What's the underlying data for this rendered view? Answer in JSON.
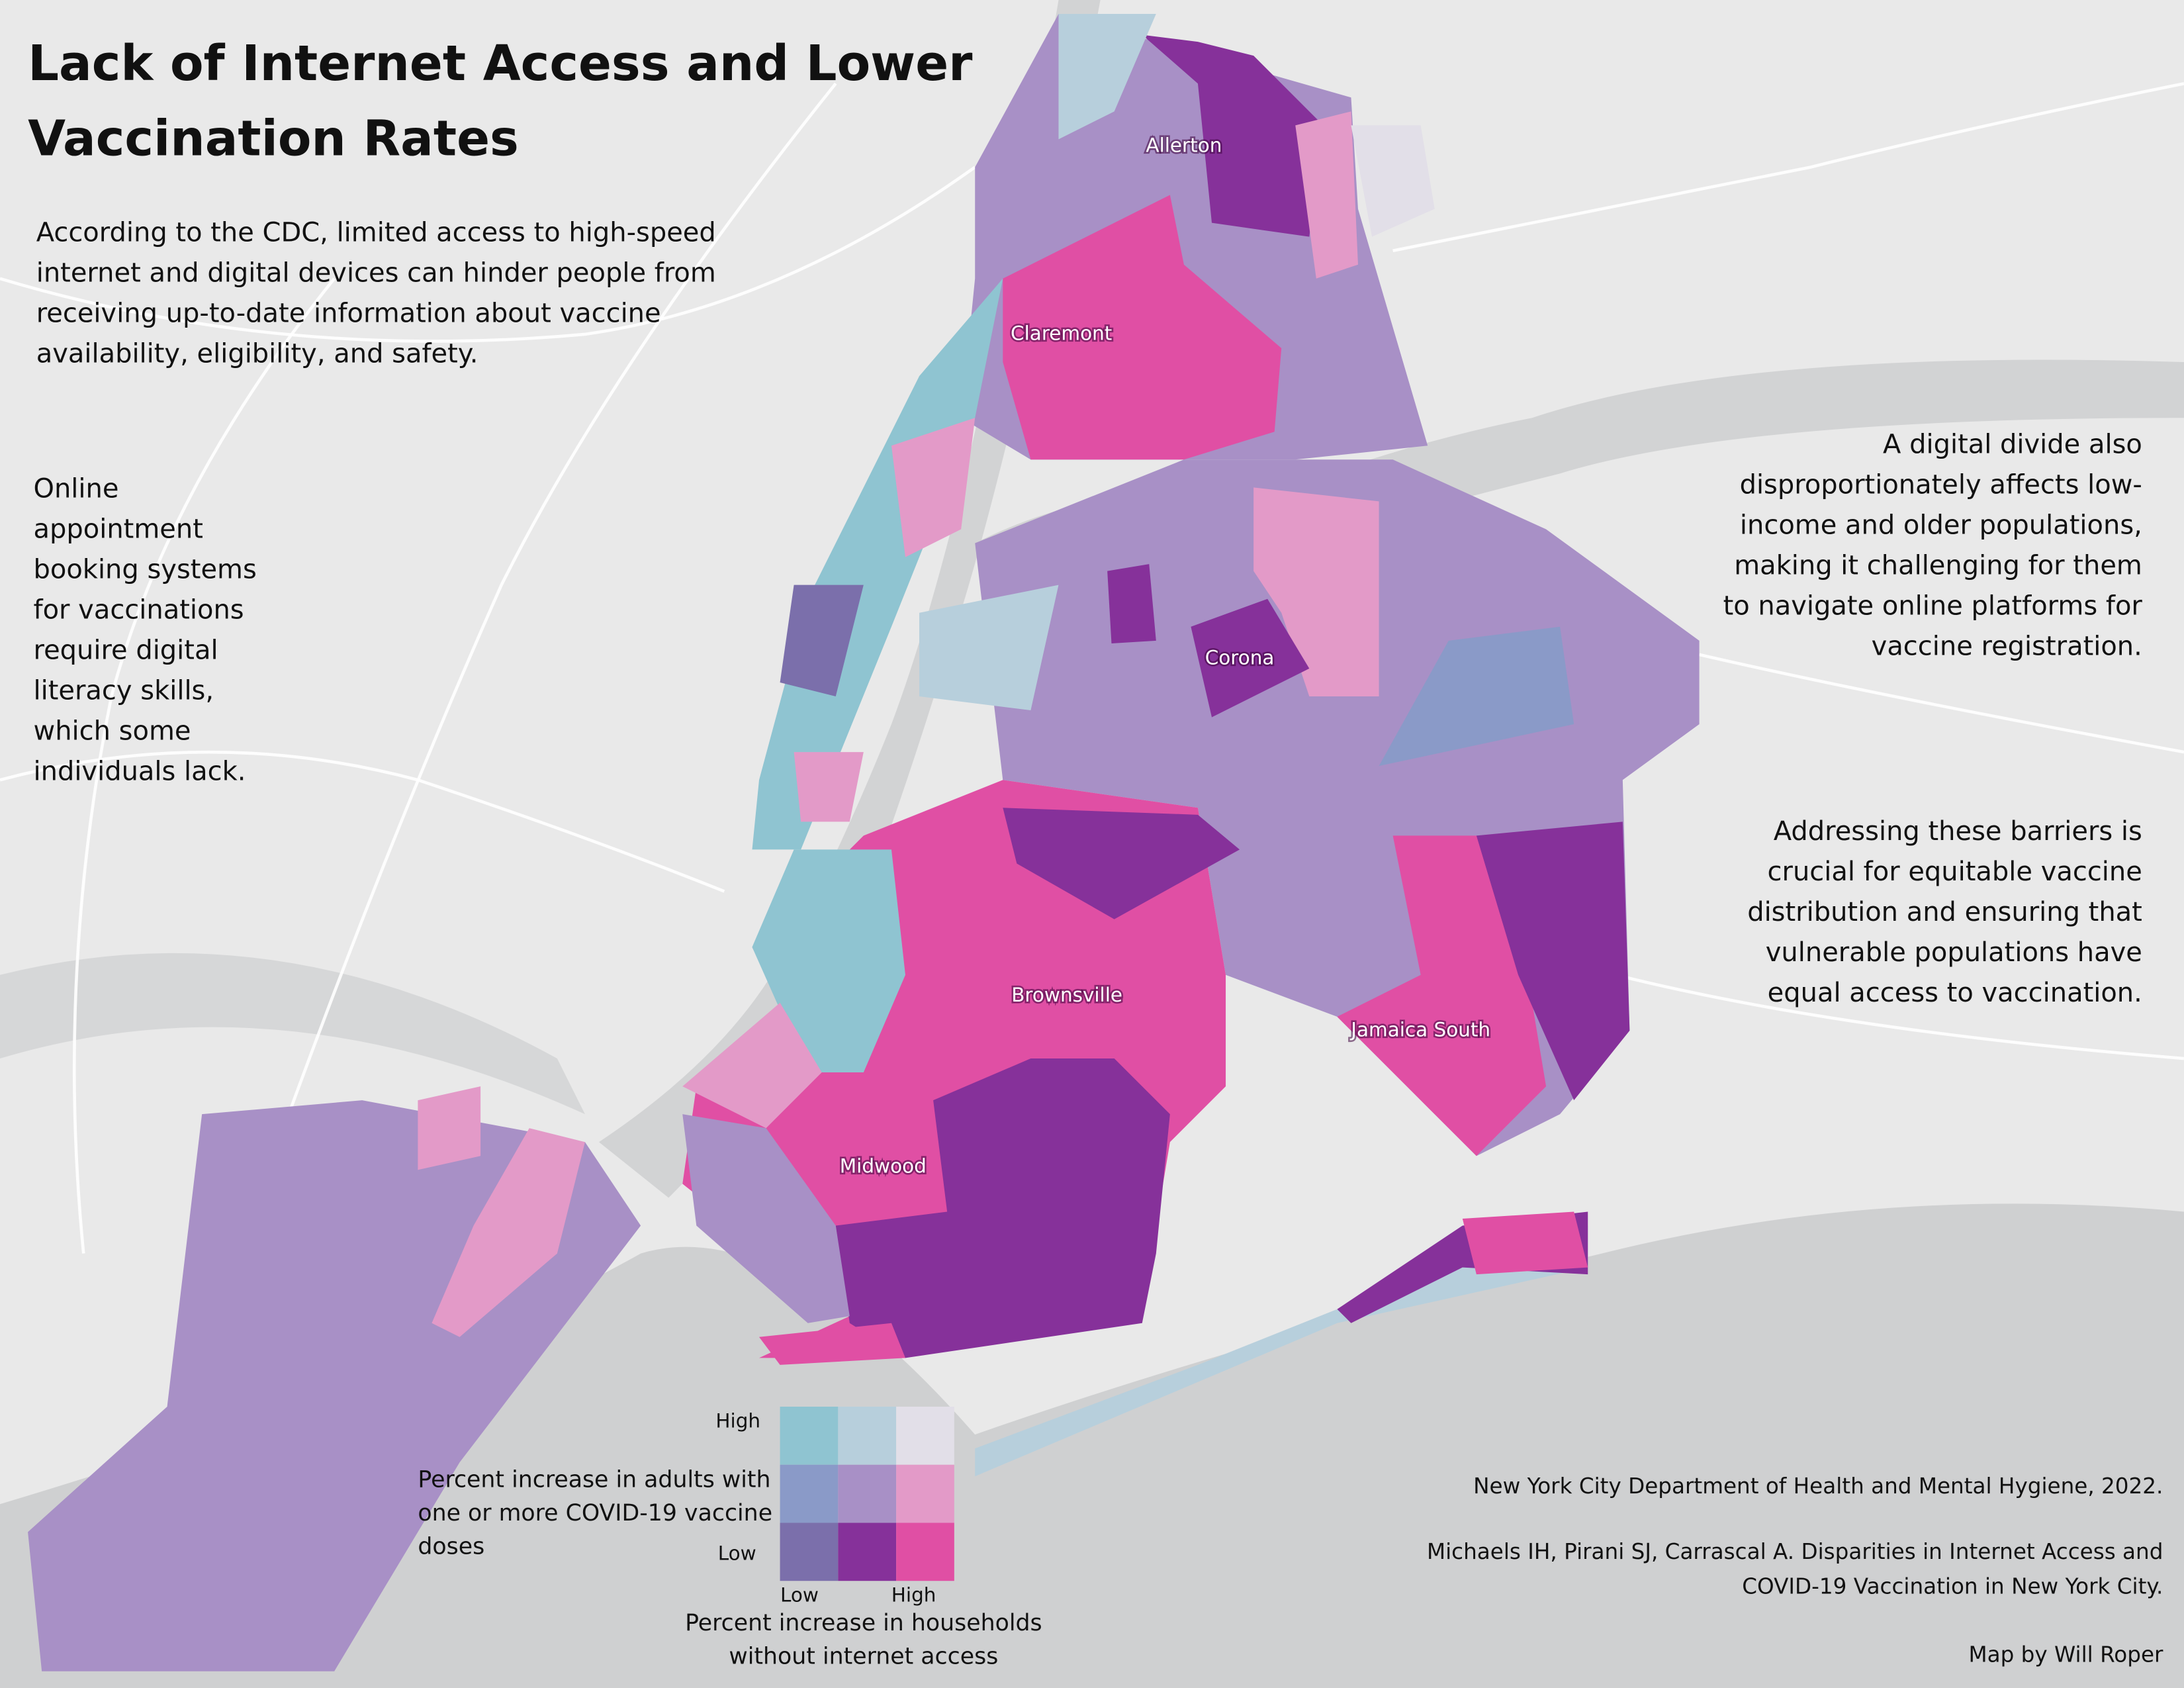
{
  "title": {
    "lines": [
      "Lack of Internet Access and Lower",
      "Vaccination Rates"
    ]
  },
  "annotations": {
    "left_top": [
      "According to the CDC, limited access to high-speed",
      "internet and digital devices can hinder people from",
      "receiving up-to-date information about vaccine",
      "availability, eligibility, and safety."
    ],
    "left_bottom": [
      "Online",
      "appointment",
      "booking systems",
      "for vaccinations",
      "require digital",
      "literacy skills,",
      "which some",
      "individuals lack."
    ],
    "right_top": [
      "A digital divide also",
      "disproportionately affects low-",
      "income and older populations,",
      "making it challenging for them",
      "to navigate online platforms for",
      "vaccine registration."
    ],
    "right_bottom": [
      "Addressing these barriers is",
      "crucial for equitable vaccine",
      "distribution and ensuring that",
      "vulnerable populations have",
      "equal access to vaccination."
    ]
  },
  "place_labels": [
    "Allerton",
    "Claremont",
    "Corona",
    "Brownsville",
    "Jamaica South",
    "Midwood"
  ],
  "legend": {
    "y_high": "High",
    "y_low": "Low",
    "x_low": "Low",
    "x_high": "High",
    "y_axis_label": [
      "Percent increase in adults with",
      "one or more COVID-19 vaccine",
      "doses"
    ],
    "x_axis_label": [
      "Percent increase in households",
      "without internet access"
    ],
    "colors": [
      [
        "#8fc4d1",
        "#b7cfdc",
        "#e2dfe8"
      ],
      [
        "#8a9ac8",
        "#a890c6",
        "#e39ac8"
      ],
      [
        "#7b6fab",
        "#86319a",
        "#e04fa4"
      ]
    ]
  },
  "credits": [
    "New York City Department of Health and Mental Hygiene, 2022.",
    "Michaels IH, Pirani SJ, Carrascal A. Disparities in Internet Access and",
    "COVID-19 Vaccination in New York City."
  ],
  "signature": "Map by Will Roper"
}
